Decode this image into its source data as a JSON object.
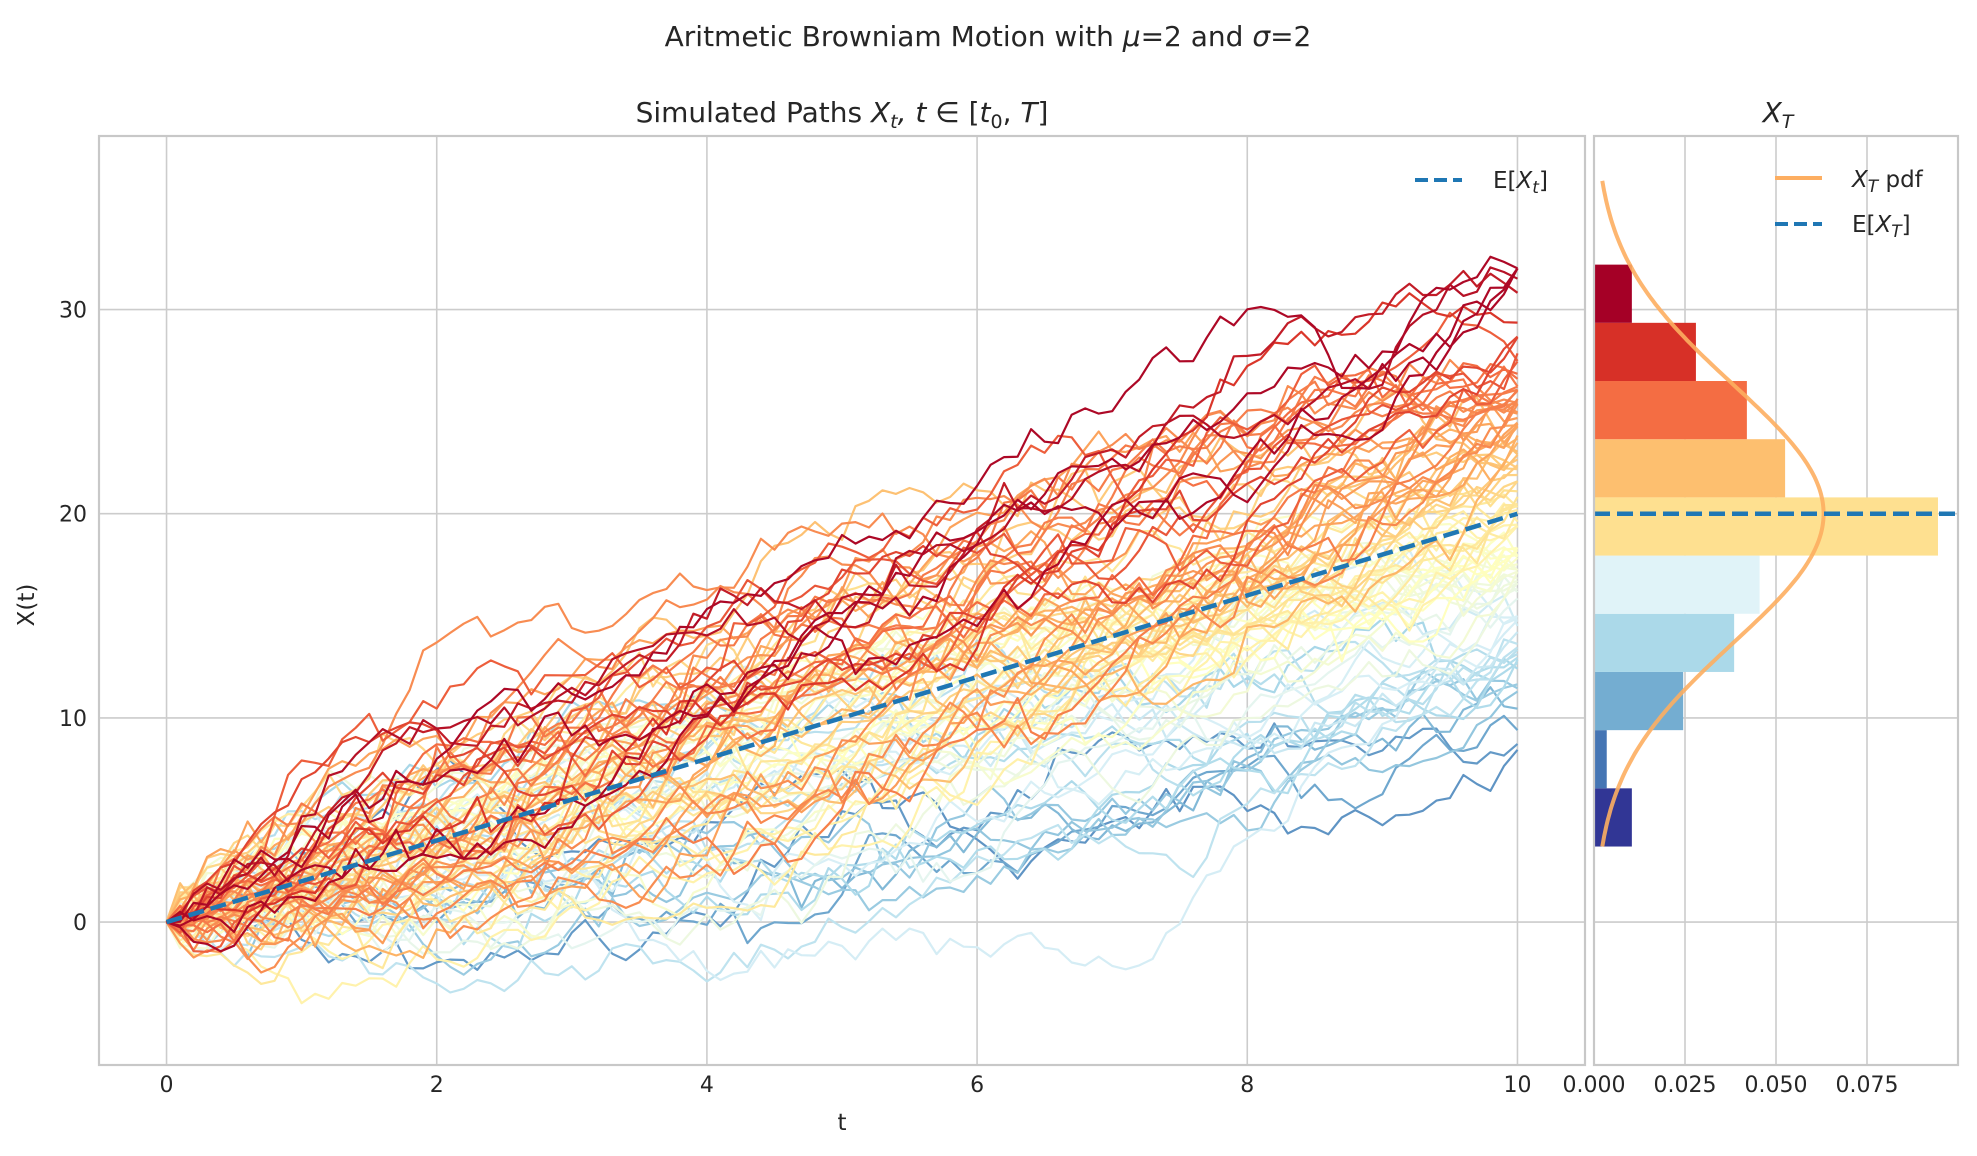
{
  "suptitle": {
    "text_before": "Aritmetic Browniam Motion with ",
    "mu_symbol": "μ",
    "mu_value": "=2 and ",
    "sigma_symbol": "σ",
    "sigma_value": "=2"
  },
  "chart_data": [
    {
      "type": "line",
      "title": "Simulated Paths X_t, t ∈ [t_0, T]",
      "title_parts": {
        "prefix": "Simulated Paths ",
        "x": "X",
        "x_sub": "t",
        "comma_t": ", t",
        "in_symbol": " ∈ [",
        "t0": "t",
        "t0_sub": "0",
        "sep": ", ",
        "T": "T",
        "close": "]"
      },
      "xlabel": "t",
      "ylabel": "X(t)",
      "xlim": [
        -0.5,
        10.5
      ],
      "ylim": [
        -7,
        38.5
      ],
      "x_ticks": [
        "0",
        "2",
        "4",
        "6",
        "8",
        "10"
      ],
      "y_ticks": [
        "0",
        "10",
        "20",
        "30"
      ],
      "grid": true,
      "mu": 2,
      "sigma": 2,
      "t_start": 0,
      "t_end": 10,
      "n_paths": 100,
      "n_steps": 100,
      "colormap": "RdYlBu_r (colored by final value)",
      "colormap_stops": [
        "#313695",
        "#4575b4",
        "#74add1",
        "#abd9e9",
        "#e0f3f8",
        "#ffffbf",
        "#fee090",
        "#fdae61",
        "#f46d43",
        "#d73027",
        "#a50026"
      ],
      "mean_line": {
        "name": "E[X_t]",
        "x": [
          0,
          10
        ],
        "y": [
          0,
          20
        ],
        "color": "#1f77b4",
        "style": "dashed"
      },
      "final_value_range": [
        4,
        32.5
      ],
      "legend": {
        "placement": "top-right",
        "entries": [
          {
            "prefix": "E[",
            "symbol": "X",
            "sub": "t",
            "suffix": "]"
          }
        ]
      }
    },
    {
      "type": "bar",
      "orientation": "horizontal",
      "title": "X_T",
      "title_parts": {
        "symbol": "X",
        "sub": "T"
      },
      "x_ticks": [
        "0.000",
        "0.025",
        "0.050",
        "0.075"
      ],
      "xlim": [
        0,
        0.1
      ],
      "ylim": [
        -7,
        38.5
      ],
      "grid": true,
      "bins": [
        {
          "y0": 3.7,
          "y1": 6.55,
          "value": 0.0104,
          "color": "#313695"
        },
        {
          "y0": 6.55,
          "y1": 9.4,
          "value": 0.0035,
          "color": "#4575b4"
        },
        {
          "y0": 9.4,
          "y1": 12.25,
          "value": 0.0245,
          "color": "#74add1"
        },
        {
          "y0": 12.25,
          "y1": 15.1,
          "value": 0.0385,
          "color": "#abd9e9"
        },
        {
          "y0": 15.1,
          "y1": 17.95,
          "value": 0.0455,
          "color": "#e0f3f8"
        },
        {
          "y0": 17.95,
          "y1": 20.8,
          "value": 0.0945,
          "color": "#fee090"
        },
        {
          "y0": 20.8,
          "y1": 23.65,
          "value": 0.0525,
          "color": "#fdbf6f"
        },
        {
          "y0": 23.65,
          "y1": 26.5,
          "value": 0.042,
          "color": "#f46d43"
        },
        {
          "y0": 26.5,
          "y1": 29.35,
          "value": 0.028,
          "color": "#d73027"
        },
        {
          "y0": 29.35,
          "y1": 32.2,
          "value": 0.0104,
          "color": "#a50026"
        }
      ],
      "pdf": {
        "name": "X_T pdf",
        "mean": 20,
        "std": 6.3246,
        "y_range": [
          3.7,
          36.3
        ],
        "color": "#fdae61"
      },
      "mean_line": {
        "name": "E[X_T]",
        "y": 20,
        "color": "#1f77b4",
        "style": "dashed"
      },
      "legend": {
        "placement": "top-right",
        "entries": [
          {
            "symbol": "X",
            "sub": "T",
            "suffix": " pdf"
          },
          {
            "prefix": "E[",
            "symbol": "X",
            "sub": "T",
            "suffix": "]"
          }
        ]
      }
    }
  ]
}
